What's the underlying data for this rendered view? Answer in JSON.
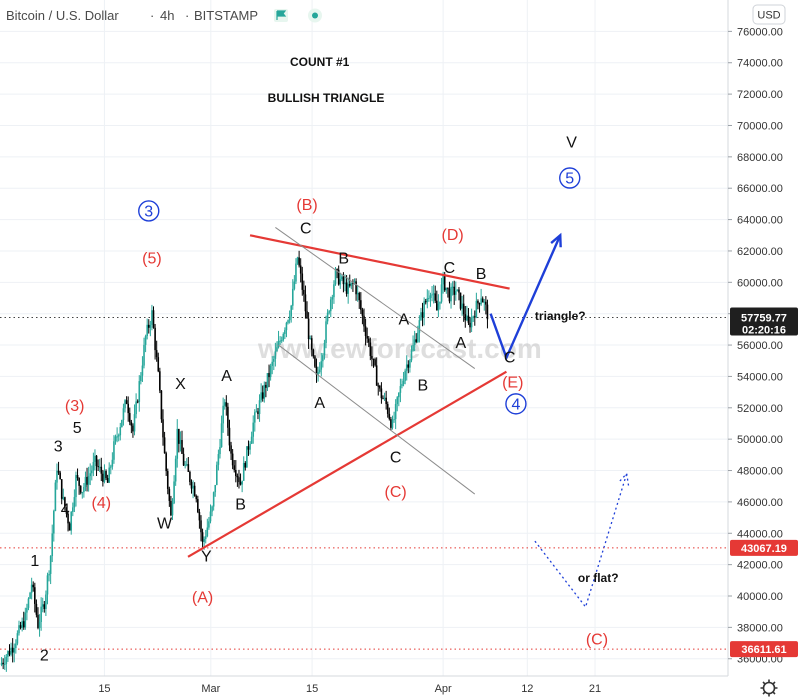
{
  "header": {
    "symbol": "Bitcoin / U.S. Dollar",
    "interval": "4h",
    "exchange": "BITSTAMP",
    "currency_label": "USD"
  },
  "watermark": "www.ewforecast.com",
  "colors": {
    "up": "#26a69a",
    "down": "#000000",
    "red": "#e53935",
    "blue": "#1e3fd8",
    "grid": "#eef1f5",
    "price_tag": "#1f1f1f",
    "level_tag": "#e53935"
  },
  "chart_data": {
    "type": "candlestick",
    "title": "Bitcoin / U.S. Dollar, 4h, BITSTAMP",
    "ylim": [
      34900,
      78000
    ],
    "xlim": [
      0,
      115
    ],
    "y_ticks": [
      36000,
      38000,
      40000,
      42000,
      44000,
      46000,
      48000,
      50000,
      52000,
      54000,
      56000,
      58000,
      60000,
      62000,
      64000,
      66000,
      68000,
      70000,
      72000,
      74000,
      76000
    ],
    "y_tick_labels": [
      "36000.00",
      "38000.00",
      "40000.00",
      "42000.00",
      "44000.00",
      "46000.00",
      "48000.00",
      "50000.00",
      "52000.00",
      "54000.00",
      "56000.00",
      "58000.00",
      "60000.00",
      "62000.00",
      "64000.00",
      "66000.00",
      "68000.00",
      "70000.00",
      "72000.00",
      "74000.00",
      "76000.00"
    ],
    "x_ticks": [
      {
        "x": 16.5,
        "label": "15"
      },
      {
        "x": 33.3,
        "label": "Mar"
      },
      {
        "x": 49.3,
        "label": "15"
      },
      {
        "x": 70.0,
        "label": "Apr"
      },
      {
        "x": 83.3,
        "label": "12"
      },
      {
        "x": 94.0,
        "label": "21"
      }
    ],
    "price_path": [
      [
        0,
        35600
      ],
      [
        2,
        36800
      ],
      [
        4,
        38600
      ],
      [
        5,
        40800
      ],
      [
        6,
        38200
      ],
      [
        7,
        39600
      ],
      [
        8,
        42600
      ],
      [
        9,
        48300
      ],
      [
        10,
        46000
      ],
      [
        11,
        44500
      ],
      [
        12,
        47500
      ],
      [
        13,
        46800
      ],
      [
        15,
        48500
      ],
      [
        17,
        47200
      ],
      [
        18,
        49500
      ],
      [
        20,
        52500
      ],
      [
        21,
        50500
      ],
      [
        23,
        56500
      ],
      [
        24,
        58000
      ],
      [
        25,
        54000
      ],
      [
        26,
        49000
      ],
      [
        27,
        45000
      ],
      [
        28,
        50500
      ],
      [
        29,
        48500
      ],
      [
        31,
        46500
      ],
      [
        32,
        43300
      ],
      [
        33.5,
        45500
      ],
      [
        35.5,
        52600
      ],
      [
        36.5,
        49000
      ],
      [
        38,
        47200
      ],
      [
        40,
        51000
      ],
      [
        42,
        53500
      ],
      [
        44,
        56000
      ],
      [
        46,
        58500
      ],
      [
        47,
        61600
      ],
      [
        48,
        59000
      ],
      [
        49,
        56000
      ],
      [
        50,
        53800
      ],
      [
        51,
        55800
      ],
      [
        52,
        58500
      ],
      [
        53,
        60500
      ],
      [
        55,
        59500
      ],
      [
        56,
        60000
      ],
      [
        58,
        56500
      ],
      [
        59,
        54700
      ],
      [
        60,
        53000
      ],
      [
        61,
        52200
      ],
      [
        62,
        50800
      ],
      [
        63,
        52800
      ],
      [
        64,
        54500
      ],
      [
        65,
        55500
      ],
      [
        66,
        57000
      ],
      [
        67,
        58500
      ],
      [
        68,
        59600
      ],
      [
        69,
        58200
      ],
      [
        70,
        60100
      ],
      [
        71,
        59200
      ],
      [
        72,
        59500
      ],
      [
        73,
        58400
      ],
      [
        74,
        57200
      ],
      [
        75,
        58200
      ],
      [
        76,
        59200
      ],
      [
        77,
        58000
      ]
    ],
    "last_price": 57759.77,
    "price_tags": [
      {
        "value": 57759.77,
        "label": "57759.77",
        "sub": "02:20:16",
        "kind": "price"
      },
      {
        "value": 43067.19,
        "label": "43067.19",
        "kind": "level"
      },
      {
        "value": 36611.61,
        "label": "36611.61",
        "kind": "level"
      }
    ],
    "trendlines": [
      {
        "name": "triangle-upper-line",
        "color": "red",
        "points": [
          [
            39.5,
            63000
          ],
          [
            80.5,
            59600
          ]
        ]
      },
      {
        "name": "triangle-lower-line",
        "color": "red",
        "points": [
          [
            29.7,
            42500
          ],
          [
            80.0,
            54300
          ]
        ]
      },
      {
        "name": "channel-upper-line",
        "color": "gray",
        "points": [
          [
            43.5,
            63500
          ],
          [
            75.0,
            54500
          ]
        ]
      },
      {
        "name": "channel-lower-line",
        "color": "gray",
        "points": [
          [
            44.0,
            56000
          ],
          [
            75.0,
            46500
          ]
        ]
      }
    ],
    "projections": [
      {
        "name": "wave-e-projection",
        "color": "blue",
        "style": "solid",
        "points": [
          [
            77.5,
            58000
          ],
          [
            80.0,
            55200
          ],
          [
            88.5,
            63000
          ]
        ]
      },
      {
        "name": "flat-alternative-projection",
        "color": "blue",
        "style": "dotted",
        "points": [
          [
            84.5,
            43500
          ],
          [
            92.5,
            39300
          ],
          [
            99.0,
            47800
          ]
        ]
      }
    ],
    "wave_labels": [
      {
        "text": "1",
        "x": 5.5,
        "y": 41900,
        "color": "black"
      },
      {
        "text": "2",
        "x": 7.0,
        "y": 35900,
        "color": "black"
      },
      {
        "text": "3",
        "x": 9.2,
        "y": 49200,
        "color": "black"
      },
      {
        "text": "4",
        "x": 10.3,
        "y": 45200,
        "color": "black"
      },
      {
        "text": "5",
        "x": 12.2,
        "y": 50400,
        "color": "black"
      },
      {
        "text": "(3)",
        "x": 11.8,
        "y": 51800,
        "color": "red"
      },
      {
        "text": "(4)",
        "x": 16.0,
        "y": 45600,
        "color": "red"
      },
      {
        "text": "(5)",
        "x": 24.0,
        "y": 61200,
        "color": "red"
      },
      {
        "text": "3",
        "x": 23.5,
        "y": 64200,
        "color": "blue",
        "circled": true
      },
      {
        "text": "X",
        "x": 28.5,
        "y": 53200,
        "color": "black"
      },
      {
        "text": "W",
        "x": 26.0,
        "y": 44300,
        "color": "black"
      },
      {
        "text": "A",
        "x": 35.8,
        "y": 53700,
        "color": "black"
      },
      {
        "text": "B",
        "x": 38.0,
        "y": 45500,
        "color": "black"
      },
      {
        "text": "Y",
        "x": 32.6,
        "y": 42200,
        "color": "black"
      },
      {
        "text": "(A)",
        "x": 32.0,
        "y": 39600,
        "color": "red"
      },
      {
        "text": "(B)",
        "x": 48.5,
        "y": 64600,
        "color": "red"
      },
      {
        "text": "C",
        "x": 48.3,
        "y": 63100,
        "color": "black"
      },
      {
        "text": "B",
        "x": 54.3,
        "y": 61200,
        "color": "black"
      },
      {
        "text": "A",
        "x": 50.5,
        "y": 52000,
        "color": "black"
      },
      {
        "text": "A",
        "x": 63.8,
        "y": 57300,
        "color": "black"
      },
      {
        "text": "C",
        "x": 62.5,
        "y": 48500,
        "color": "black"
      },
      {
        "text": "(C)",
        "x": 62.5,
        "y": 46300,
        "color": "red"
      },
      {
        "text": "B",
        "x": 66.8,
        "y": 53100,
        "color": "black"
      },
      {
        "text": "A",
        "x": 72.8,
        "y": 55800,
        "color": "black"
      },
      {
        "text": "(D)",
        "x": 71.5,
        "y": 62700,
        "color": "red"
      },
      {
        "text": "C",
        "x": 71.0,
        "y": 60600,
        "color": "black"
      },
      {
        "text": "B",
        "x": 76.0,
        "y": 60200,
        "color": "black"
      },
      {
        "text": "C",
        "x": 80.5,
        "y": 54900,
        "color": "black"
      },
      {
        "text": "(E)",
        "x": 81.0,
        "y": 53300,
        "color": "red"
      },
      {
        "text": "4",
        "x": 81.5,
        "y": 51900,
        "color": "blue",
        "circled": true
      },
      {
        "text": "V",
        "x": 90.3,
        "y": 68600,
        "color": "black"
      },
      {
        "text": "5",
        "x": 90.0,
        "y": 66300,
        "color": "blue",
        "circled": true
      },
      {
        "text": "(C)",
        "x": 94.3,
        "y": 36900,
        "color": "red"
      }
    ],
    "annotations": [
      {
        "text": "COUNT #1",
        "x": 50.5,
        "y": 73800
      },
      {
        "text": "BULLISH TRIANGLE",
        "x": 51.5,
        "y": 71500
      }
    ],
    "notes": [
      {
        "text": "triangle?",
        "x": 88.5,
        "y": 57600
      },
      {
        "text": "or flat?",
        "x": 94.5,
        "y": 40900
      }
    ]
  }
}
